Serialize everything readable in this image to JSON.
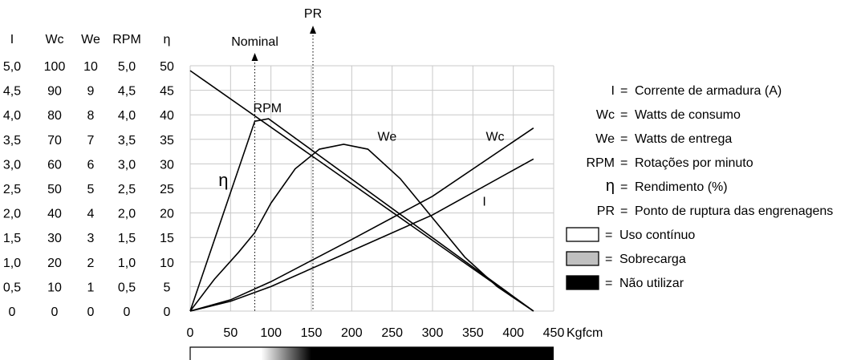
{
  "chart_data": {
    "type": "line",
    "xlabel": "Kgfcm",
    "x_ticks": [
      0,
      50,
      100,
      150,
      200,
      250,
      300,
      350,
      400,
      450
    ],
    "xlim": [
      0,
      450
    ],
    "grid": true,
    "left_columns": [
      {
        "header": "I",
        "ticks": [
          "5,0",
          "4,5",
          "4,0",
          "3,5",
          "3,0",
          "2,5",
          "2,0",
          "1,5",
          "1,0",
          "0,5",
          "0"
        ]
      },
      {
        "header": "Wc",
        "ticks": [
          "100",
          "90",
          "80",
          "70",
          "60",
          "50",
          "40",
          "30",
          "20",
          "10",
          "0"
        ]
      },
      {
        "header": "We",
        "ticks": [
          "10",
          "9",
          "8",
          "7",
          "6",
          "5",
          "4",
          "3",
          "2",
          "1",
          "0"
        ]
      },
      {
        "header": "RPM",
        "ticks": [
          "5,0",
          "4,5",
          "4,0",
          "3,5",
          "3,0",
          "2,5",
          "2,0",
          "1,5",
          "1,0",
          "0,5",
          "0"
        ]
      },
      {
        "header": "η",
        "ticks": [
          "50",
          "45",
          "40",
          "35",
          "30",
          "25",
          "20",
          "15",
          "10",
          "5",
          "0"
        ]
      }
    ],
    "plot_scale": [
      0,
      50
    ],
    "series": [
      {
        "name": "RPM",
        "x": [
          0,
          425
        ],
        "y": [
          49,
          0
        ]
      },
      {
        "name": "η",
        "x": [
          0,
          80,
          97,
          425
        ],
        "y": [
          0,
          38.7,
          39.2,
          0
        ]
      },
      {
        "name": "We",
        "x": [
          0,
          30,
          60,
          80,
          100,
          130,
          160,
          190,
          220,
          260,
          300,
          340,
          380,
          425
        ],
        "y": [
          0,
          6.5,
          12,
          16,
          22,
          29,
          33,
          34,
          33,
          27,
          19,
          11,
          5,
          0
        ]
      },
      {
        "name": "Wc",
        "x": [
          0,
          50,
          100,
          200,
          300,
          425
        ],
        "y": [
          0,
          2.3,
          6,
          14.6,
          23.4,
          37.3
        ]
      },
      {
        "name": "I",
        "x": [
          0,
          50,
          100,
          200,
          300,
          425
        ],
        "y": [
          0,
          2,
          5,
          12.3,
          19.6,
          31
        ]
      }
    ],
    "markers": [
      {
        "label": "Nominal",
        "x": 80
      },
      {
        "label": "PR",
        "x": 152
      }
    ],
    "series_labels": [
      {
        "text": "RPM",
        "x": 78,
        "y": 40.5
      },
      {
        "text": "η",
        "x": 35,
        "y": 25.5
      },
      {
        "text": "We",
        "x": 232,
        "y": 34.7
      },
      {
        "text": "Wc",
        "x": 366,
        "y": 34.7
      },
      {
        "text": "I",
        "x": 362,
        "y": 21.5
      }
    ],
    "legend": {
      "placement": "right",
      "entries": [
        {
          "key": "I",
          "text": "Corrente de armadura (A)"
        },
        {
          "key": "Wc",
          "text": "Watts de consumo"
        },
        {
          "key": "We",
          "text": "Watts de entrega"
        },
        {
          "key": "RPM",
          "text": "Rotações por minuto"
        },
        {
          "key": "η",
          "text": "Rendimento (%)"
        },
        {
          "key": "PR",
          "text": "Ponto de ruptura das engrenagens"
        }
      ],
      "zones": [
        {
          "text": "Uso contínuo",
          "color": "#ffffff"
        },
        {
          "text": "Sobrecarga",
          "color": "#c0c0c0"
        },
        {
          "text": "Não utilizar",
          "color": "#000000"
        }
      ]
    },
    "usage_bar": {
      "continuous_until": 88,
      "overload_until": 150,
      "max": 425
    }
  }
}
